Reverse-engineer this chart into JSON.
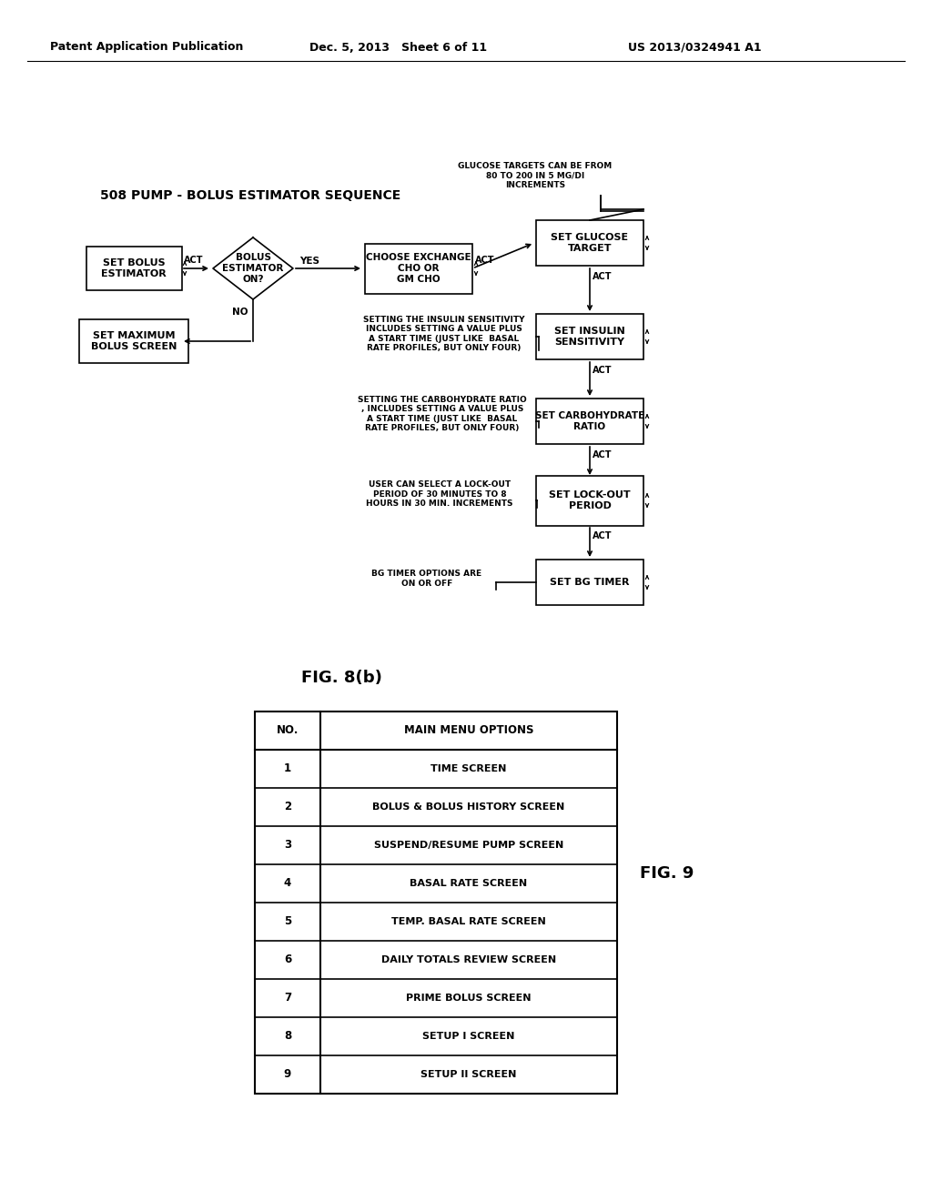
{
  "header_left": "Patent Application Publication",
  "header_mid": "Dec. 5, 2013   Sheet 6 of 11",
  "header_right": "US 2013/0324941 A1",
  "flowchart_title": "508 PUMP - BOLUS ESTIMATOR SEQUENCE",
  "fig_label": "FIG. 8(b)",
  "fig9_label": "FIG. 9",
  "glucose_note": "GLUCOSE TARGETS CAN BE FROM\n80 TO 200 IN 5 MG/DI\nINCREMENTS",
  "insulin_note": "SETTING THE INSULIN SENSITIVITY\nINCLUDES SETTING A VALUE PLUS\nA START TIME (JUST LIKE  BASAL\nRATE PROFILES, BUT ONLY FOUR)",
  "carb_note": "SETTING THE CARBOHYDRATE RATIO\n, INCLUDES SETTING A VALUE PLUS\nA START TIME (JUST LIKE  BASAL\nRATE PROFILES, BUT ONLY FOUR)",
  "lockout_note": "USER CAN SELECT A LOCK-OUT\nPERIOD OF 30 MINUTES TO 8\nHOURS IN 30 MIN. INCREMENTS",
  "bg_note": "BG TIMER OPTIONS ARE\nON OR OFF",
  "table_headers": [
    "NO.",
    "MAIN MENU OPTIONS"
  ],
  "table_rows": [
    [
      "1",
      "TIME SCREEN"
    ],
    [
      "2",
      "BOLUS & BOLUS HISTORY SCREEN"
    ],
    [
      "3",
      "SUSPEND/RESUME PUMP SCREEN"
    ],
    [
      "4",
      "BASAL RATE SCREEN"
    ],
    [
      "5",
      "TEMP. BASAL RATE SCREEN"
    ],
    [
      "6",
      "DAILY TOTALS REVIEW SCREEN"
    ],
    [
      "7",
      "PRIME BOLUS SCREEN"
    ],
    [
      "8",
      "SETUP I SCREEN"
    ],
    [
      "9",
      "SETUP II SCREEN"
    ]
  ],
  "bg_color": "#ffffff"
}
